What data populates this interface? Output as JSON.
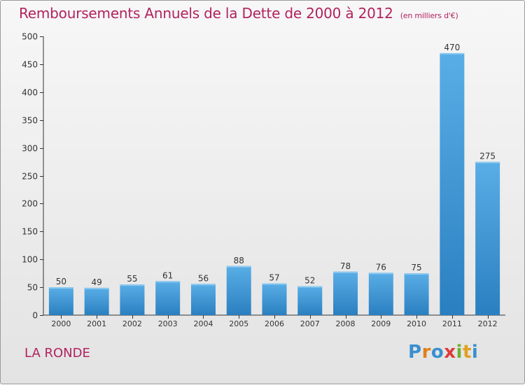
{
  "header": {
    "title": "Remboursements Annuels de la Dette de 2000 à 2012",
    "subtitle": "(en milliers d'€)"
  },
  "footer": {
    "commune": "LA RONDE",
    "brand": "Proxiti"
  },
  "colors": {
    "title": "#b2225e",
    "bar_top": "#5aaee6",
    "bar_bottom": "#2a7fc0",
    "brand_letters": [
      "#3a8fd0",
      "#e0801a",
      "#3a8fd0",
      "#e03a3a",
      "#70b030",
      "#e0a020",
      "#3a8fd0"
    ]
  },
  "chart_data": {
    "type": "bar",
    "categories": [
      "2000",
      "2001",
      "2002",
      "2003",
      "2004",
      "2005",
      "2006",
      "2007",
      "2008",
      "2009",
      "2010",
      "2011",
      "2012"
    ],
    "values": [
      50,
      49,
      55,
      61,
      56,
      88,
      57,
      52,
      78,
      76,
      75,
      470,
      275
    ],
    "ylim": [
      0,
      500
    ],
    "yticks": [
      0,
      50,
      100,
      150,
      200,
      250,
      300,
      350,
      400,
      450,
      500
    ],
    "grid": false,
    "data_labels": true
  }
}
